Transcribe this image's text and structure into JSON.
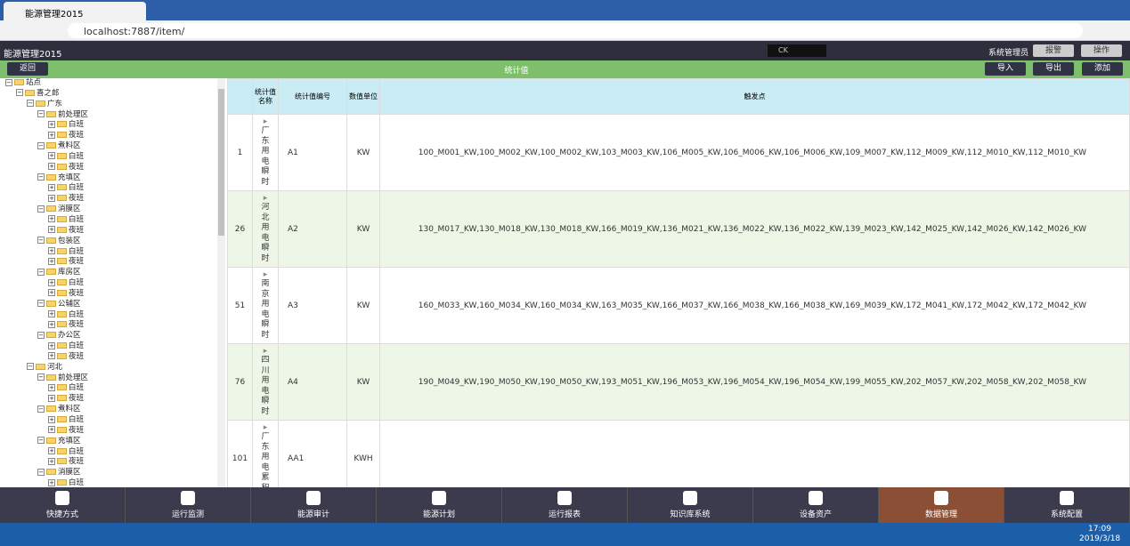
{
  "browser": {
    "tab_title": "能源管理2015",
    "url": "localhost:7887/item/"
  },
  "header": {
    "app_title": "能源管理2015",
    "ck": "CK",
    "user": "系统管理员",
    "buttons": [
      "报警",
      "操作"
    ]
  },
  "toolbar": {
    "back": "返回",
    "title": "统计值",
    "buttons": [
      "导入",
      "导出",
      "添加"
    ]
  },
  "tree": [
    {
      "label": "站点",
      "level": 0
    },
    {
      "label": "喜之郎",
      "level": 1
    },
    {
      "label": "广东",
      "level": 2
    },
    {
      "label": "前处理区",
      "level": 3
    },
    {
      "label": "白班",
      "level": 4
    },
    {
      "label": "夜班",
      "level": 4
    },
    {
      "label": "煮料区",
      "level": 3
    },
    {
      "label": "白班",
      "level": 4
    },
    {
      "label": "夜班",
      "level": 4
    },
    {
      "label": "充填区",
      "level": 3
    },
    {
      "label": "白班",
      "level": 4
    },
    {
      "label": "夜班",
      "level": 4
    },
    {
      "label": "消膜区",
      "level": 3
    },
    {
      "label": "白班",
      "level": 4
    },
    {
      "label": "夜班",
      "level": 4
    },
    {
      "label": "包装区",
      "level": 3
    },
    {
      "label": "白班",
      "level": 4
    },
    {
      "label": "夜班",
      "level": 4
    },
    {
      "label": "库房区",
      "level": 3
    },
    {
      "label": "白班",
      "level": 4
    },
    {
      "label": "夜班",
      "level": 4
    },
    {
      "label": "公辅区",
      "level": 3
    },
    {
      "label": "白班",
      "level": 4
    },
    {
      "label": "夜班",
      "level": 4
    },
    {
      "label": "办公区",
      "level": 3
    },
    {
      "label": "白班",
      "level": 4
    },
    {
      "label": "夜班",
      "level": 4
    },
    {
      "label": "河北",
      "level": 2
    },
    {
      "label": "前处理区",
      "level": 3
    },
    {
      "label": "白班",
      "level": 4
    },
    {
      "label": "夜班",
      "level": 4
    },
    {
      "label": "煮料区",
      "level": 3
    },
    {
      "label": "白班",
      "level": 4
    },
    {
      "label": "夜班",
      "level": 4
    },
    {
      "label": "充填区",
      "level": 3
    },
    {
      "label": "白班",
      "level": 4
    },
    {
      "label": "夜班",
      "level": 4
    },
    {
      "label": "消膜区",
      "level": 3
    },
    {
      "label": "白班",
      "level": 4
    }
  ],
  "table": {
    "headers": [
      "统计值名称",
      "统计值编号",
      "数值单位",
      "触发点"
    ],
    "rows": [
      {
        "id": 1,
        "name": "广东用电瞬时",
        "code": "A1",
        "unit": "KW",
        "triggers": "100_M001_KW,100_M002_KW,100_M002_KW,103_M003_KW,106_M005_KW,106_M006_KW,106_M006_KW,109_M007_KW,112_M009_KW,112_M010_KW,112_M010_KW"
      },
      {
        "id": 26,
        "name": "河北用电瞬时",
        "code": "A2",
        "unit": "KW",
        "triggers": "130_M017_KW,130_M018_KW,130_M018_KW,166_M019_KW,136_M021_KW,136_M022_KW,136_M022_KW,139_M023_KW,142_M025_KW,142_M026_KW,142_M026_KW"
      },
      {
        "id": 51,
        "name": "南京用电瞬时",
        "code": "A3",
        "unit": "KW",
        "triggers": "160_M033_KW,160_M034_KW,160_M034_KW,163_M035_KW,166_M037_KW,166_M038_KW,166_M038_KW,169_M039_KW,172_M041_KW,172_M042_KW,172_M042_KW"
      },
      {
        "id": 76,
        "name": "四川用电瞬时",
        "code": "A4",
        "unit": "KW",
        "triggers": "190_M049_KW,190_M050_KW,190_M050_KW,193_M051_KW,196_M053_KW,196_M054_KW,196_M054_KW,199_M055_KW,202_M057_KW,202_M058_KW,202_M058_KW"
      },
      {
        "id": 101,
        "name": "广东用电累积",
        "code": "AA1",
        "unit": "KWH"
      }
    ]
  },
  "nav": [
    {
      "label": "快捷方式"
    },
    {
      "label": "运行监测"
    },
    {
      "label": "能源审计"
    },
    {
      "label": "能源计划"
    },
    {
      "label": "运行报表"
    },
    {
      "label": "知识库系统"
    },
    {
      "label": "设备资产"
    },
    {
      "label": "数据管理",
      "active": true
    },
    {
      "label": "系统配置"
    }
  ],
  "taskbar": {
    "time": "17:09",
    "date": "2019/3/18"
  }
}
